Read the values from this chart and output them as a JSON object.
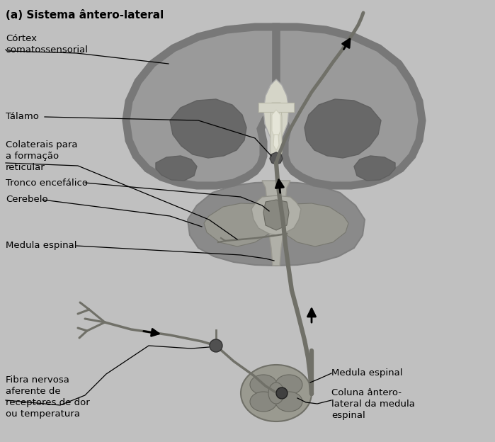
{
  "title": "(a) Sistema ântero-lateral",
  "bg_color": "#c0c0c0",
  "labels": {
    "cortex": "Córtex\nsomatossensorial",
    "talamo": "Tálamo",
    "colaterais": "Colaterais para\na formação\nreticular",
    "tronco": "Tronco encefálico",
    "cerebelo": "Cerebelo",
    "medula_espinal_top": "Medula espinal",
    "fibra": "Fibra nervosa\naferente de\nreceptores de dor\nou temperatura",
    "medula_espinal_bot": "Medula espinal",
    "coluna": "Coluna ântero-\nlateral da medula\nespinal"
  },
  "brain_outer": "#9a9a9a",
  "brain_rim": "#7a7a7a",
  "brain_inner": "#8a8a8a",
  "brain_dark": "#686868",
  "corpus_light": "#d5d5c8",
  "ventricle_light": "#e5e5d8",
  "stem_color": "#b0b0a8",
  "path_color": "#707068",
  "text_color": "#000000",
  "line_color": "#000000"
}
